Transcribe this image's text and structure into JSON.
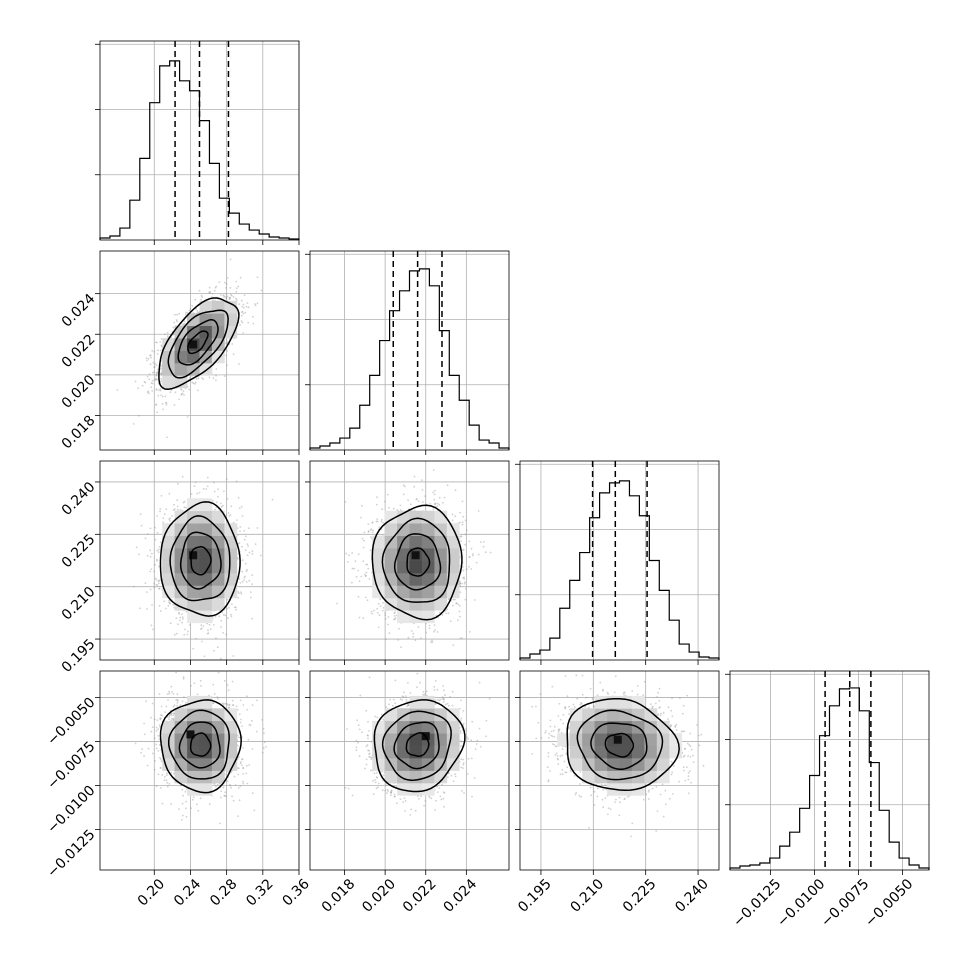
{
  "chart_data": {
    "type": "corner",
    "grid": true,
    "dimensions": [
      {
        "range": [
          0.14,
          0.36
        ],
        "ticks": [
          0.2,
          0.24,
          0.28,
          0.32,
          0.36
        ],
        "tick_labels": [
          "0.20",
          "0.24",
          "0.28",
          "0.32",
          "0.36"
        ],
        "quantiles": [
          0.223,
          0.25,
          0.282
        ],
        "hist": {
          "edges_start": 0.14,
          "bin_width": 0.011,
          "counts": [
            2,
            4,
            12,
            40,
            82,
            138,
            175,
            180,
            160,
            150,
            120,
            77,
            42,
            27,
            16,
            10,
            6,
            3,
            2,
            1
          ]
        },
        "hist_max": 200
      },
      {
        "range": [
          0.0163,
          0.0261
        ],
        "ticks": [
          0.018,
          0.02,
          0.022,
          0.024
        ],
        "tick_labels": [
          "0.018",
          "0.020",
          "0.022",
          "0.024"
        ],
        "quantiles": [
          0.0204,
          0.0216,
          0.0228
        ],
        "hist": {
          "edges_start": 0.0163,
          "bin_width": 0.00049,
          "counts": [
            2,
            4,
            7,
            12,
            22,
            45,
            75,
            110,
            140,
            160,
            180,
            182,
            165,
            120,
            75,
            50,
            25,
            10,
            7,
            2
          ]
        },
        "hist_max": 200
      },
      {
        "range": [
          0.189,
          0.246
        ],
        "ticks": [
          0.195,
          0.21,
          0.225,
          0.24
        ],
        "tick_labels": [
          "0.195",
          "0.210",
          "0.225",
          "0.240"
        ],
        "quantiles": [
          0.2098,
          0.2163,
          0.2254
        ],
        "hist": {
          "edges_start": 0.189,
          "bin_width": 0.00285,
          "counts": [
            2,
            6,
            10,
            22,
            52,
            80,
            108,
            143,
            168,
            178,
            180,
            165,
            145,
            100,
            70,
            40,
            16,
            8,
            3,
            2
          ]
        },
        "hist_max": 200
      },
      {
        "range": [
          -0.0148,
          -0.0035
        ],
        "ticks": [
          -0.0125,
          -0.01,
          -0.0075,
          -0.005
        ],
        "tick_labels": [
          "−0.0125",
          "−0.0100",
          "−0.0075",
          "−0.0050"
        ],
        "quantiles": [
          -0.0094,
          -0.008,
          -0.0068
        ],
        "hist": {
          "edges_start": -0.0148,
          "bin_width": 0.000565,
          "counts": [
            2,
            4,
            5,
            7,
            12,
            24,
            38,
            62,
            95,
            135,
            165,
            182,
            183,
            160,
            108,
            60,
            28,
            12,
            5,
            2
          ]
        },
        "hist_max": 200
      }
    ],
    "pairs": [
      {
        "row": 1,
        "col": 0,
        "center": [
          0.248,
          0.0216
        ],
        "spread": [
          0.022,
          0.0011
        ],
        "rho": 0.62,
        "peak": [
          0.243,
          0.0215
        ]
      },
      {
        "row": 2,
        "col": 0,
        "center": [
          0.251,
          0.2175
        ],
        "spread": [
          0.022,
          0.008
        ],
        "rho": 0.0,
        "peak": [
          0.243,
          0.219
        ]
      },
      {
        "row": 2,
        "col": 1,
        "center": [
          0.0216,
          0.217
        ],
        "spread": [
          0.0011,
          0.008
        ],
        "rho": 0.0,
        "peak": [
          0.0215,
          0.219
        ]
      },
      {
        "row": 3,
        "col": 0,
        "center": [
          0.251,
          -0.0077
        ],
        "spread": [
          0.022,
          0.0013
        ],
        "rho": 0.0,
        "peak": [
          0.24,
          -0.0071
        ]
      },
      {
        "row": 3,
        "col": 1,
        "center": [
          0.0216,
          -0.0077
        ],
        "spread": [
          0.0011,
          0.0013
        ],
        "rho": 0.1,
        "peak": [
          0.022,
          -0.0072
        ]
      },
      {
        "row": 3,
        "col": 2,
        "center": [
          0.2175,
          -0.0077
        ],
        "spread": [
          0.008,
          0.0013
        ],
        "rho": -0.08,
        "peak": [
          0.217,
          -0.0074
        ]
      }
    ],
    "contour_levels_sigma": [
      0.5,
      1.0,
      1.5,
      2.0
    ],
    "colors": {
      "line": "#000000",
      "points": "#9a9a9a",
      "grid": "#b0b0b0"
    }
  }
}
